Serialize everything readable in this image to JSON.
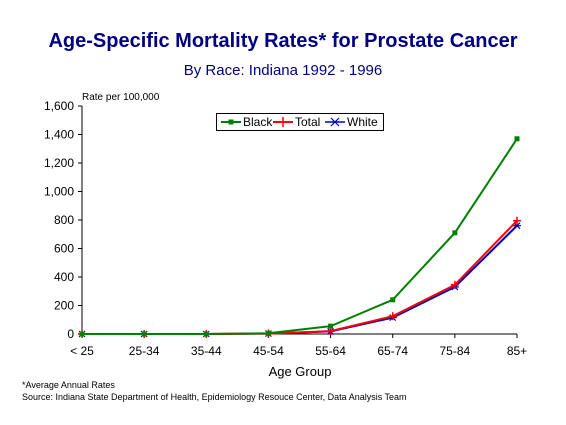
{
  "chart_data": {
    "type": "line",
    "title": "Age-Specific Mortality Rates* for Prostate Cancer",
    "subtitle": "By Race:  Indiana 1992 - 1996",
    "ylabel": "Rate per 100,000",
    "xlabel": "Age Group",
    "categories": [
      "< 25",
      "25-34",
      "35-44",
      "45-54",
      "55-64",
      "65-74",
      "75-84",
      "85+"
    ],
    "ylim": [
      0,
      1600
    ],
    "yticks": [
      "0",
      "200",
      "400",
      "600",
      "800",
      "1,000",
      "1,200",
      "1,400",
      "1,600"
    ],
    "grid": false,
    "legend_position": "top",
    "series": [
      {
        "name": "Black",
        "color": "#008000",
        "marker": "square",
        "values": [
          0,
          0,
          0,
          5,
          55,
          240,
          710,
          1370
        ]
      },
      {
        "name": "Total",
        "color": "#ff0000",
        "marker": "plus",
        "values": [
          0,
          0,
          0,
          3,
          20,
          125,
          345,
          795
        ]
      },
      {
        "name": "White",
        "color": "#0000c0",
        "marker": "star",
        "values": [
          0,
          0,
          0,
          3,
          18,
          115,
          330,
          760
        ]
      }
    ]
  },
  "footnotes": {
    "note": "*Average Annual Rates",
    "source": "Source:  Indiana State Department of Health, Epidemiology Resouce Center, Data Analysis Team"
  }
}
